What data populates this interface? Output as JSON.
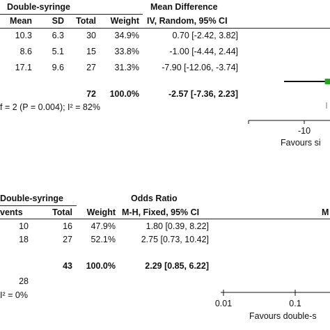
{
  "top_panel": {
    "group_header": "Double-syringe",
    "effect_header_1": "Mean Difference",
    "effect_header_2": "IV, Random, 95% CI",
    "columns": {
      "mean": "Mean",
      "sd": "SD",
      "total": "Total",
      "weight": "Weight"
    },
    "rows": [
      {
        "mean": "10.3",
        "sd": "6.3",
        "total": "30",
        "weight": "34.9%",
        "ci": "0.70 [-2.42, 3.82]"
      },
      {
        "mean": "8.6",
        "sd": "5.1",
        "total": "15",
        "weight": "33.8%",
        "ci": "-1.00 [-4.44, 2.44]"
      },
      {
        "mean": "17.1",
        "sd": "9.6",
        "total": "27",
        "weight": "31.3%",
        "ci": "-7.90 [-12.06, -3.74]"
      }
    ],
    "summary": {
      "total": "72",
      "weight": "100.0%",
      "ci": "-2.57 [-7.36, 2.23]"
    },
    "heterogeneity": "f = 2 (P = 0.004); I² = 82%",
    "axis_tick": "-10",
    "axis_caption": "Favours si"
  },
  "bottom_panel": {
    "group_header": "Double-syringe",
    "effect_header_1": "Odds Ratio",
    "effect_header_2": "M-H, Fixed, 95% CI",
    "columns": {
      "events": "vents",
      "total": "Total",
      "weight": "Weight"
    },
    "right_header_fragment": "M",
    "rows": [
      {
        "events": "10",
        "total": "16",
        "weight": "47.9%",
        "ci": "1.80 [0.39, 8.22]"
      },
      {
        "events": "18",
        "total": "27",
        "weight": "52.1%",
        "ci": "2.75 [0.73, 10.42]"
      }
    ],
    "summary": {
      "total": "43",
      "weight": "100.0%",
      "ci": "2.29 [0.85, 6.22]"
    },
    "events_total": "28",
    "heterogeneity": "I² = 0%",
    "axis_ticks": [
      "0.01",
      "0.1"
    ],
    "axis_caption": "Favours double-s"
  },
  "colors": {
    "study_marker": "#1fa81f",
    "line": "#111111"
  },
  "chart_data": [
    {
      "type": "forest",
      "effect_measure": "Mean Difference (IV, Random, 95% CI)",
      "studies": [
        {
          "estimate": 0.7,
          "ci_low": -2.42,
          "ci_high": 3.82,
          "weight": 34.9
        },
        {
          "estimate": -1.0,
          "ci_low": -4.44,
          "ci_high": 2.44,
          "weight": 33.8
        },
        {
          "estimate": -7.9,
          "ci_low": -12.06,
          "ci_high": -3.74,
          "weight": 31.3
        }
      ],
      "pooled": {
        "estimate": -2.57,
        "ci_low": -7.36,
        "ci_high": 2.23
      },
      "visible_ticks": [
        -10
      ]
    },
    {
      "type": "forest",
      "effect_measure": "Odds Ratio (M-H, Fixed, 95% CI)",
      "scale": "log",
      "studies": [
        {
          "estimate": 1.8,
          "ci_low": 0.39,
          "ci_high": 8.22,
          "weight": 47.9
        },
        {
          "estimate": 2.75,
          "ci_low": 0.73,
          "ci_high": 10.42,
          "weight": 52.1
        }
      ],
      "pooled": {
        "estimate": 2.29,
        "ci_low": 0.85,
        "ci_high": 6.22
      },
      "visible_ticks": [
        0.01,
        0.1
      ]
    }
  ]
}
